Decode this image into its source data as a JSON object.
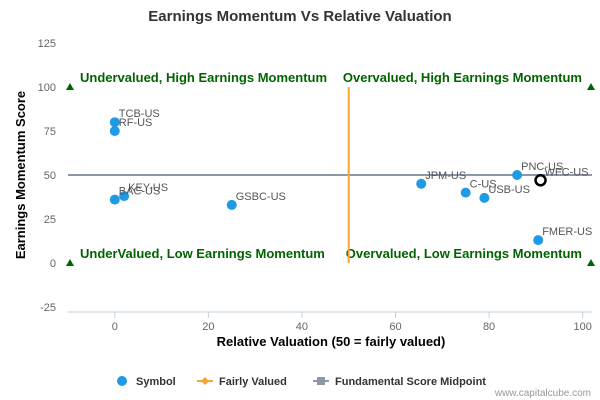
{
  "chart_data": {
    "type": "scatter",
    "title": "Earnings Momentum Vs Relative Valuation",
    "xlabel": "Relative Valuation (50 = fairly valued)",
    "ylabel": "Earnings Momentum Score",
    "xlim": [
      -10,
      102
    ],
    "ylim": [
      -25,
      125
    ],
    "x_ticks": [
      0,
      20,
      40,
      60,
      80,
      100
    ],
    "y_ticks": [
      -25,
      0,
      25,
      50,
      75,
      100,
      125
    ],
    "grid": false,
    "legend_position": "bottom",
    "series": [
      {
        "name": "Symbol",
        "color": "#1f9be6",
        "points": [
          {
            "label": "TCB-US",
            "x": 0,
            "y": 80
          },
          {
            "label": "RF-US",
            "x": 0,
            "y": 75
          },
          {
            "label": "KEY-US",
            "x": 2,
            "y": 38
          },
          {
            "label": "BAC-US",
            "x": 0,
            "y": 36
          },
          {
            "label": "GSBC-US",
            "x": 25,
            "y": 33
          },
          {
            "label": "JPM-US",
            "x": 65.5,
            "y": 45
          },
          {
            "label": "C-US",
            "x": 75,
            "y": 40
          },
          {
            "label": "USB-US",
            "x": 79,
            "y": 37
          },
          {
            "label": "PNC-US",
            "x": 86,
            "y": 50
          },
          {
            "label": "WFC-US",
            "x": 91,
            "y": 47
          },
          {
            "label": "FMER-US",
            "x": 90.5,
            "y": 13
          }
        ]
      },
      {
        "name": "Fairly Valued",
        "color": "#f7a535",
        "x": 50,
        "y_range": [
          0,
          100
        ]
      },
      {
        "name": "Fundamental Score Midpoint",
        "color": "#8c98a8",
        "y": 50
      }
    ],
    "highlighted_point": "WFC-US",
    "quadrant_labels": {
      "top_left": "Undervalued, High Earnings Momentum",
      "top_right": "Overvalued, High Earnings Momentum",
      "bottom_left": "UnderValued, Low Earnings Momentum",
      "bottom_right": "Overvalued, Low Earnings Momentum"
    },
    "marker_color": "#006400"
  },
  "credit": "www.capitalcube.com"
}
